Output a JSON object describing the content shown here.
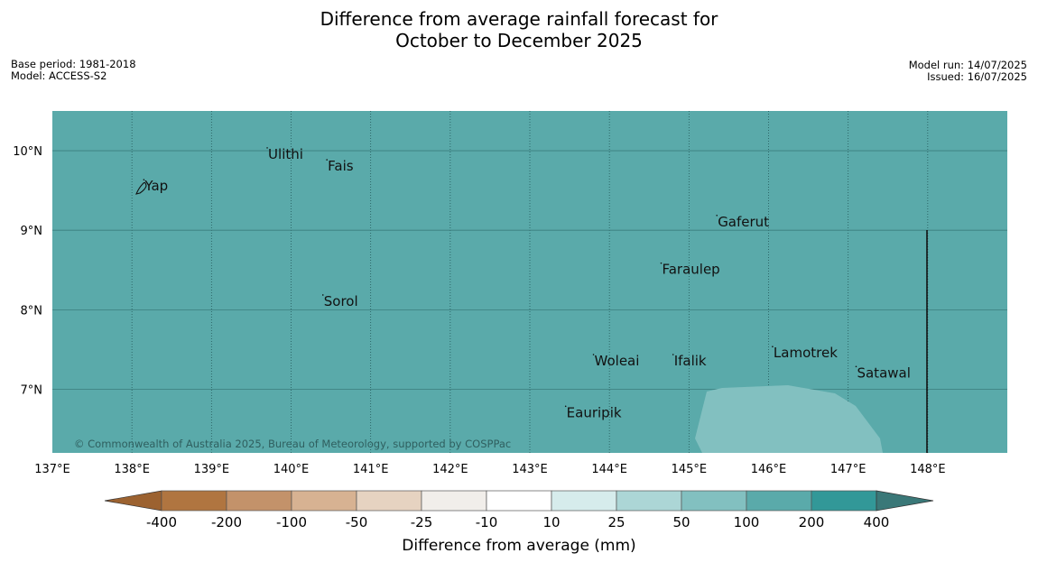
{
  "title_line1": "Difference from average rainfall forecast for",
  "title_line2": "October to December 2025",
  "meta_left": {
    "base_period": "Base period: 1981-2018",
    "model": "Model: ACCESS-S2"
  },
  "meta_right": {
    "model_run": "Model run: 14/07/2025",
    "issued": "Issued: 16/07/2025"
  },
  "map": {
    "lon_range": [
      137,
      149
    ],
    "lat_range": [
      6.2,
      10.5
    ],
    "fill_color": "#5aaaaa",
    "lon_ticks": [
      "137°E",
      "138°E",
      "139°E",
      "140°E",
      "141°E",
      "142°E",
      "143°E",
      "144°E",
      "145°E",
      "146°E",
      "147°E",
      "148°E"
    ],
    "lat_ticks": [
      "10°N",
      "9°N",
      "8°N",
      "7°N"
    ],
    "places": [
      {
        "name": "Yap",
        "lon": 138.15,
        "lat": 9.5
      },
      {
        "name": "Ulithi",
        "lon": 139.7,
        "lat": 9.9
      },
      {
        "name": "Fais",
        "lon": 140.45,
        "lat": 9.75
      },
      {
        "name": "Gaferut",
        "lon": 145.35,
        "lat": 9.05
      },
      {
        "name": "Faraulep",
        "lon": 144.65,
        "lat": 8.45
      },
      {
        "name": "Sorol",
        "lon": 140.4,
        "lat": 8.05
      },
      {
        "name": "Lamotrek",
        "lon": 146.05,
        "lat": 7.4
      },
      {
        "name": "Woleai",
        "lon": 143.8,
        "lat": 7.3
      },
      {
        "name": "Ifalik",
        "lon": 144.8,
        "lat": 7.3
      },
      {
        "name": "Satawal",
        "lon": 147.1,
        "lat": 7.15
      },
      {
        "name": "Eauripik",
        "lon": 143.45,
        "lat": 6.65
      }
    ],
    "copyright": "© Commonwealth of Australia 2025, Bureau of Meteorology, supported by COSPPac"
  },
  "colorbar": {
    "labels": [
      "-400",
      "-200",
      "-100",
      "-50",
      "-25",
      "-10",
      "10",
      "25",
      "50",
      "100",
      "200",
      "400"
    ],
    "colors": [
      "#b07540",
      "#c3926a",
      "#d7b292",
      "#e6d3c1",
      "#f1eeea",
      "#ffffff",
      "#d6ecec",
      "#acd6d6",
      "#82c0c0",
      "#5aaaaa",
      "#329898",
      "#3a7878"
    ],
    "under_color": "#9c6230",
    "over_color": "#3a7878",
    "label": "Difference from average (mm)"
  }
}
